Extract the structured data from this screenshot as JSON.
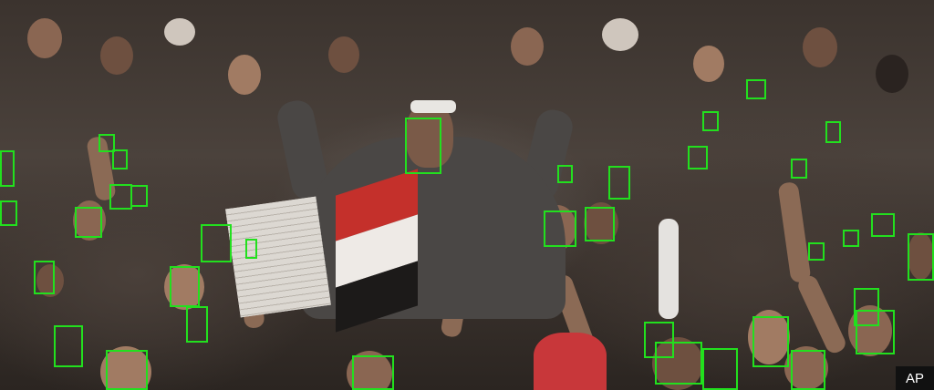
{
  "photo": {
    "credit": "AP",
    "box_color": "#22e01e",
    "face_box_count": 42
  }
}
